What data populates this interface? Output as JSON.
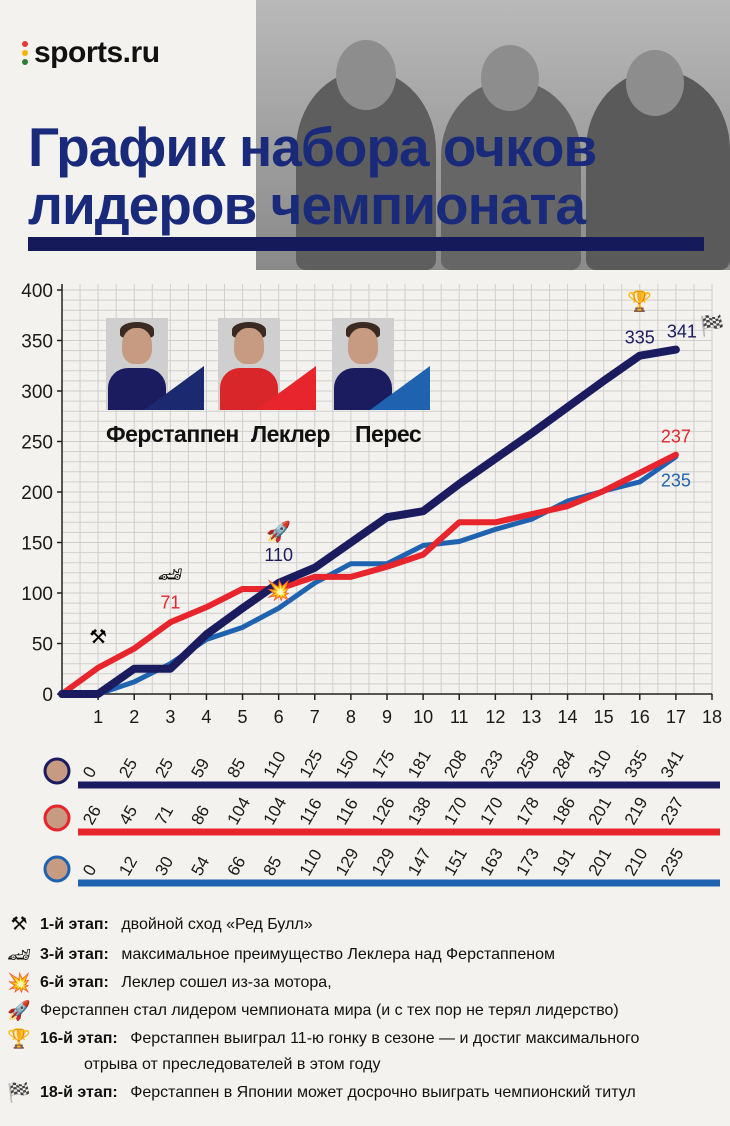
{
  "brand": {
    "logo_text": "sports.ru",
    "dot_colors": [
      "#e53935",
      "#f5b400",
      "#2e7d32"
    ]
  },
  "title": {
    "line1": "График набора очков",
    "line2": "лидеров чемпионата",
    "color": "#1a2a7a"
  },
  "colors": {
    "verstappen": "#1b1c60",
    "leclerc": "#e8242c",
    "perez": "#1f63b0",
    "grid": "#cfcfcf"
  },
  "drivers": [
    {
      "key": "verstappen",
      "name": "Ферстаппен"
    },
    {
      "key": "leclerc",
      "name": "Леклер"
    },
    {
      "key": "perez",
      "name": "Перес"
    }
  ],
  "chart_data": {
    "type": "line",
    "x": [
      0,
      1,
      2,
      3,
      4,
      5,
      6,
      7,
      8,
      9,
      10,
      11,
      12,
      13,
      14,
      15,
      16,
      17
    ],
    "x_ticks": [
      1,
      2,
      3,
      4,
      5,
      6,
      7,
      8,
      9,
      10,
      11,
      12,
      13,
      14,
      15,
      16,
      17,
      18
    ],
    "y_ticks": [
      0,
      50,
      100,
      150,
      200,
      250,
      300,
      350,
      400
    ],
    "xlim": [
      0,
      18
    ],
    "ylim": [
      0,
      400
    ],
    "grid": true,
    "series": [
      {
        "name": "Ферстаппен",
        "key": "verstappen",
        "values": [
          0,
          0,
          25,
          25,
          59,
          85,
          110,
          125,
          150,
          175,
          181,
          208,
          233,
          258,
          284,
          310,
          335,
          341
        ]
      },
      {
        "name": "Леклер",
        "key": "leclerc",
        "values": [
          0,
          26,
          45,
          71,
          86,
          104,
          104,
          116,
          116,
          126,
          138,
          170,
          170,
          178,
          186,
          201,
          219,
          237
        ]
      },
      {
        "name": "Перес",
        "key": "perez",
        "values": [
          0,
          0,
          12,
          30,
          54,
          66,
          85,
          110,
          129,
          129,
          147,
          151,
          163,
          173,
          191,
          201,
          210,
          235
        ]
      }
    ],
    "annotations": [
      {
        "x": 3,
        "value": "71",
        "series": "leclerc"
      },
      {
        "x": 6,
        "value": "110",
        "series": "verstappen"
      },
      {
        "x": 16,
        "value": "335",
        "series": "verstappen"
      },
      {
        "x": 17,
        "value": "341",
        "series": "verstappen"
      },
      {
        "x": 17,
        "value": "237",
        "series": "leclerc"
      },
      {
        "x": 17,
        "value": "235",
        "series": "perez"
      }
    ],
    "table": [
      {
        "key": "verstappen",
        "values": [
          "0",
          "25",
          "25",
          "59",
          "85",
          "110",
          "125",
          "150",
          "175",
          "181",
          "208",
          "233",
          "258",
          "284",
          "310",
          "335",
          "341"
        ]
      },
      {
        "key": "leclerc",
        "values": [
          "26",
          "45",
          "71",
          "86",
          "104",
          "104",
          "116",
          "116",
          "126",
          "138",
          "170",
          "170",
          "178",
          "186",
          "201",
          "219",
          "237"
        ]
      },
      {
        "key": "perez",
        "values": [
          "0",
          "12",
          "30",
          "54",
          "66",
          "85",
          "110",
          "129",
          "129",
          "147",
          "151",
          "163",
          "173",
          "191",
          "201",
          "210",
          "235"
        ]
      }
    ]
  },
  "notes": [
    {
      "icon": "crossed-hammers-icon",
      "glyph": "⚒",
      "stage": "1-й этап:",
      "text": "двойной сход «Ред Булл»"
    },
    {
      "icon": "race-car-icon",
      "glyph": "🏎",
      "stage": "3-й этап:",
      "text": "максимальное преимущество Леклера над Ферстаппеном"
    },
    {
      "icon": "explosion-icon",
      "glyph": "💥",
      "stage": "6-й этап:",
      "text": "Леклер сошел из-за мотора,"
    },
    {
      "icon": "rocket-icon",
      "glyph": "🚀",
      "stage": "",
      "text": "Ферстаппен стал лидером чемпионата мира (и с тех пор не терял лидерство)"
    },
    {
      "icon": "trophy-icon",
      "glyph": "🏆",
      "stage": "16-й этап:",
      "text": "Ферстаппен выиграл 11-ю гонку в сезоне — и достиг максимального"
    },
    {
      "icon": "",
      "glyph": "",
      "stage": "",
      "text": "отрыва от преследователей в этом году"
    },
    {
      "icon": "checkered-flag-icon",
      "glyph": "🏁",
      "stage": "18-й этап:",
      "text": "Ферстаппен в Японии может досрочно выиграть чемпионский титул"
    }
  ]
}
